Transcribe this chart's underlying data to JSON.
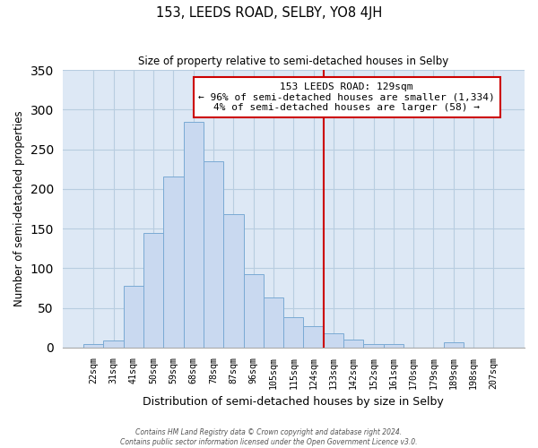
{
  "title": "153, LEEDS ROAD, SELBY, YO8 4JH",
  "subtitle": "Size of property relative to semi-detached houses in Selby",
  "xlabel": "Distribution of semi-detached houses by size in Selby",
  "ylabel": "Number of semi-detached properties",
  "bar_labels": [
    "22sqm",
    "31sqm",
    "41sqm",
    "50sqm",
    "59sqm",
    "68sqm",
    "78sqm",
    "87sqm",
    "96sqm",
    "105sqm",
    "115sqm",
    "124sqm",
    "133sqm",
    "142sqm",
    "152sqm",
    "161sqm",
    "170sqm",
    "179sqm",
    "189sqm",
    "198sqm",
    "207sqm"
  ],
  "bar_heights": [
    5,
    9,
    78,
    144,
    216,
    284,
    235,
    168,
    93,
    63,
    38,
    27,
    18,
    10,
    5,
    4,
    0,
    0,
    7,
    0,
    0
  ],
  "bar_color": "#c9d9f0",
  "bar_edge_color": "#7aaad4",
  "vline_color": "#cc0000",
  "annotation_title": "153 LEEDS ROAD: 129sqm",
  "annotation_line1": "← 96% of semi-detached houses are smaller (1,334)",
  "annotation_line2": "4% of semi-detached houses are larger (58) →",
  "annotation_box_color": "white",
  "annotation_box_edge": "#cc0000",
  "ylim": [
    0,
    350
  ],
  "yticks": [
    0,
    50,
    100,
    150,
    200,
    250,
    300,
    350
  ],
  "footer1": "Contains HM Land Registry data © Crown copyright and database right 2024.",
  "footer2": "Contains public sector information licensed under the Open Government Licence v3.0.",
  "bg_color": "#dde8f5",
  "fig_bg_color": "#ffffff",
  "grid_color": "#b8cde0"
}
